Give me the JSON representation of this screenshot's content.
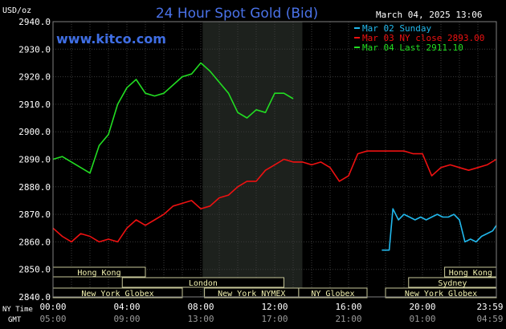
{
  "chart_data": {
    "type": "line",
    "title": "24 Hour Spot Gold (Bid)",
    "unit_label": "USD/oz",
    "watermark": "www.kitco.com",
    "timestamp": "March 04, 2025 13:06",
    "ylim": [
      2840,
      2940
    ],
    "y_ticks": [
      "2940.0",
      "2930.0",
      "2920.0",
      "2910.0",
      "2900.0",
      "2890.0",
      "2880.0",
      "2870.0",
      "2860.0",
      "2850.0",
      "2840.0"
    ],
    "xlim": [
      0,
      24
    ],
    "x_ticks": [
      {
        "at": 0,
        "ny": "00:00",
        "gmt": "05:00"
      },
      {
        "at": 4,
        "ny": "04:00",
        "gmt": "09:00"
      },
      {
        "at": 8,
        "ny": "08:00",
        "gmt": "13:00"
      },
      {
        "at": 12,
        "ny": "12:00",
        "gmt": "17:00"
      },
      {
        "at": 16,
        "ny": "16:00",
        "gmt": "21:00"
      },
      {
        "at": 20,
        "ny": "20:00",
        "gmt": "01:00"
      },
      {
        "at": 24,
        "ny": "23:59",
        "gmt": "04:59"
      }
    ],
    "axis_row_labels": {
      "ny": "NY Time",
      "gmt": "GMT"
    },
    "shaded_session": [
      8.1,
      13.5
    ],
    "series": [
      {
        "name": "Mar 02 Sunday",
        "color": "#21b8ec",
        "x": [
          17.8,
          18.2,
          18.4,
          18.7,
          19.0,
          19.3,
          19.6,
          19.9,
          20.2,
          20.5,
          20.8,
          21.1,
          21.4,
          21.7,
          22.0,
          22.3,
          22.6,
          22.9,
          23.2,
          23.5,
          23.8,
          24.0
        ],
        "y": [
          2857,
          2857,
          2872,
          2868,
          2870,
          2869,
          2868,
          2869,
          2868,
          2869,
          2870,
          2869,
          2869,
          2870,
          2868,
          2860,
          2861,
          2860,
          2862,
          2863,
          2864,
          2866
        ]
      },
      {
        "name": "Mar 03 NY close 2893.00",
        "color": "#ee1111",
        "x": [
          0.0,
          0.5,
          1.0,
          1.5,
          2.0,
          2.5,
          3.0,
          3.5,
          4.0,
          4.5,
          5.0,
          5.5,
          6.0,
          6.5,
          7.0,
          7.5,
          8.0,
          8.5,
          9.0,
          9.5,
          10.0,
          10.5,
          11.0,
          11.5,
          12.0,
          12.5,
          13.0,
          13.5,
          14.0,
          14.5,
          15.0,
          15.5,
          16.0,
          16.5,
          17.0,
          17.5,
          18.0,
          18.5,
          19.0,
          19.5,
          20.0,
          20.5,
          21.0,
          21.5,
          22.0,
          22.5,
          23.0,
          23.5,
          24.0
        ],
        "y": [
          2865,
          2862,
          2860,
          2863,
          2862,
          2860,
          2861,
          2860,
          2865,
          2868,
          2866,
          2868,
          2870,
          2873,
          2874,
          2875,
          2872,
          2873,
          2876,
          2877,
          2880,
          2882,
          2882,
          2886,
          2888,
          2890,
          2889,
          2889,
          2888,
          2889,
          2887,
          2882,
          2884,
          2892,
          2893,
          2893,
          2893,
          2893,
          2893,
          2892,
          2892,
          2884,
          2887,
          2888,
          2887,
          2886,
          2887,
          2888,
          2890
        ]
      },
      {
        "name": "Mar 04 Last 2911.10",
        "color": "#22dd22",
        "x": [
          0.0,
          0.5,
          1.0,
          1.5,
          2.0,
          2.5,
          3.0,
          3.5,
          4.0,
          4.5,
          5.0,
          5.5,
          6.0,
          6.5,
          7.0,
          7.5,
          8.0,
          8.5,
          9.0,
          9.5,
          10.0,
          10.5,
          11.0,
          11.5,
          12.0,
          12.5,
          13.0
        ],
        "y": [
          2890,
          2891,
          2889,
          2887,
          2885,
          2895,
          2899,
          2910,
          2916,
          2919,
          2914,
          2913,
          2914,
          2917,
          2920,
          2921,
          2925,
          2922,
          2918,
          2914,
          2907,
          2905,
          2908,
          2907,
          2914,
          2914,
          2912
        ]
      }
    ],
    "market_bars": [
      {
        "row": 0,
        "label": "Hong Kong",
        "start": 0,
        "end": 5.0
      },
      {
        "row": 0,
        "label": "Hong Kong",
        "start": 21.2,
        "end": 24
      },
      {
        "row": 1,
        "label": "London",
        "start": 3.75,
        "end": 12.5
      },
      {
        "row": 1,
        "label": "Sydney",
        "start": 19.25,
        "end": 24
      },
      {
        "row": 2,
        "label": "New York Globex",
        "start": 0,
        "end": 7.0
      },
      {
        "row": 2,
        "label": "New York NYMEX",
        "start": 8.2,
        "end": 13.3
      },
      {
        "row": 2,
        "label": "NY Globex",
        "start": 13.3,
        "end": 17.0
      },
      {
        "row": 2,
        "label": "New York Globex",
        "start": 18.0,
        "end": 24
      }
    ]
  }
}
